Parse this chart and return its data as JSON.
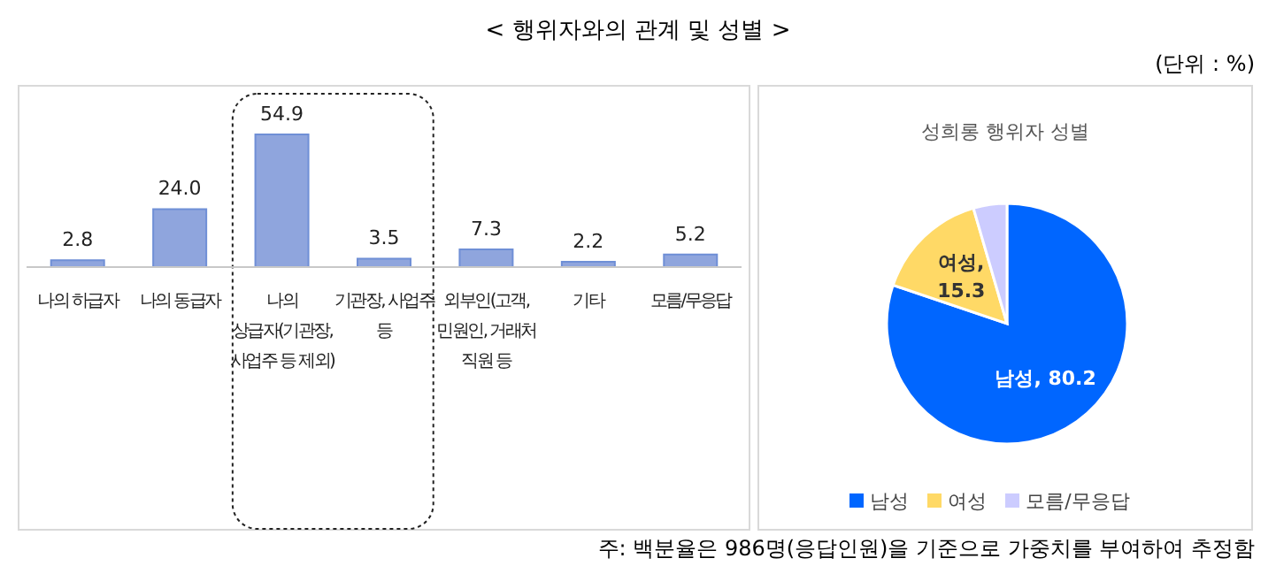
{
  "chart_data": [
    {
      "type": "bar",
      "title": "< 행위자와의 관계 및 성별 >",
      "annotations": [
        "주: 백분율은 986명(응답인원)을 기준으로 가중치를 부여하여 추정함"
      ],
      "categories": [
        "나의 하급자",
        "나의 동급자",
        "나의 상급자(기관장, 사업주 등 제외)",
        "기관장, 사업주 등",
        "외부인(고객, 민원인, 거래처 직원 등",
        "기타",
        "모름/무응답"
      ],
      "values": [
        2.8,
        24.0,
        54.9,
        3.5,
        7.3,
        2.2,
        5.2
      ],
      "color": "#8fa5dd",
      "value_labels": [
        "2.8",
        "24.0",
        "54.9",
        "3.5",
        "7.3",
        "2.2",
        "5.2"
      ]
    },
    {
      "type": "pie",
      "title": "성희롱 행위자 성별",
      "subtitle": "(단위 : %)",
      "categories": [
        "남성",
        "여성",
        "모름/무응답"
      ],
      "values": [
        80.2,
        15.3,
        4.5
      ],
      "colors": [
        "#0066ff",
        "#ffd966",
        "#ccccff"
      ],
      "value_labels": [
        "남성, 80.2",
        "여성, 15.3",
        null
      ],
      "legend": "bottom"
    }
  ]
}
